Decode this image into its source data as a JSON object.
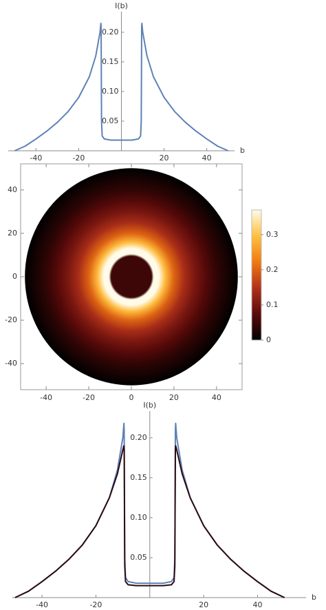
{
  "chart_data": [
    {
      "type": "line",
      "x_label": "b",
      "y_label": "I(b)",
      "x": [
        -50,
        -45,
        -40,
        -35,
        -30,
        -25,
        -20,
        -15,
        -12,
        -10,
        -9.6,
        -9.5,
        -9.3,
        -9,
        -8,
        -5,
        0,
        5,
        8,
        9,
        9.3,
        9.5,
        9.6,
        10,
        12,
        15,
        20,
        25,
        30,
        35,
        40,
        45,
        50
      ],
      "values": [
        0,
        0.008,
        0.02,
        0.033,
        0.048,
        0.066,
        0.09,
        0.125,
        0.16,
        0.2,
        0.215,
        0.21,
        0.05,
        0.025,
        0.02,
        0.018,
        0.018,
        0.018,
        0.02,
        0.025,
        0.05,
        0.21,
        0.215,
        0.2,
        0.16,
        0.125,
        0.09,
        0.066,
        0.048,
        0.033,
        0.02,
        0.008,
        0
      ],
      "color": "#5e81b5",
      "xlim": [
        -53,
        53
      ],
      "ylim": [
        0,
        0.23
      ],
      "xticks": [
        -40,
        -20,
        20,
        40
      ],
      "yticks": [
        0.05,
        {
          "value": 0.1,
          "label": "0.10"
        },
        0.15,
        {
          "value": 0.2,
          "label": "0.20"
        }
      ]
    },
    {
      "type": "density",
      "r": [
        0,
        9,
        9.5,
        10.5,
        13,
        16,
        20,
        25,
        30,
        35,
        40,
        45,
        50
      ],
      "values": [
        0.05,
        0.05,
        0.05,
        0.37,
        0.37,
        0.29,
        0.2,
        0.14,
        0.1,
        0.07,
        0.04,
        0.02,
        0
      ],
      "xlim": [
        -52,
        52
      ],
      "ylim": [
        -52,
        52
      ],
      "xticks": [
        -40,
        -20,
        0,
        20,
        40
      ],
      "yticks": [
        -40,
        -20,
        0,
        20,
        40
      ],
      "colorscale": [
        "#000000",
        "#5a0a0a",
        "#b0301a",
        "#f07a10",
        "#ffc040",
        "#fffbe8"
      ],
      "clim": [
        0,
        0.37
      ],
      "cticks": [
        0,
        0.1,
        0.2,
        0.3
      ]
    },
    {
      "type": "line",
      "x_label": "b",
      "y_label": "I(b)",
      "x": [
        -50,
        -45,
        -40,
        -35,
        -30,
        -25,
        -20,
        -15,
        -12,
        -10,
        -9.6,
        -9.5,
        -9.3,
        -9,
        -8,
        -5,
        0,
        5,
        8,
        9,
        9.3,
        9.5,
        9.6,
        10,
        12,
        15,
        20,
        25,
        30,
        35,
        40,
        45,
        50
      ],
      "series": [
        {
          "color": "#5e81b5",
          "values": [
            0,
            0.008,
            0.02,
            0.033,
            0.048,
            0.066,
            0.09,
            0.125,
            0.16,
            0.2,
            0.218,
            0.21,
            0.05,
            0.025,
            0.02,
            0.018,
            0.018,
            0.018,
            0.02,
            0.025,
            0.05,
            0.21,
            0.218,
            0.2,
            0.16,
            0.125,
            0.09,
            0.066,
            0.048,
            0.033,
            0.02,
            0.008,
            0
          ]
        },
        {
          "color": "#2b0a12",
          "values": [
            0,
            0.008,
            0.02,
            0.033,
            0.048,
            0.066,
            0.09,
            0.125,
            0.155,
            0.185,
            0.19,
            0.185,
            0.04,
            0.02,
            0.016,
            0.015,
            0.015,
            0.015,
            0.016,
            0.02,
            0.04,
            0.185,
            0.19,
            0.185,
            0.155,
            0.125,
            0.09,
            0.066,
            0.048,
            0.033,
            0.02,
            0.008,
            0
          ]
        }
      ],
      "xlim": [
        -51,
        58
      ],
      "ylim": [
        0,
        0.23
      ],
      "xticks": [
        -40,
        -20,
        20,
        40
      ],
      "yticks": [
        0.05,
        {
          "value": 0.1,
          "label": "0.10"
        },
        0.15,
        {
          "value": 0.2,
          "label": "0.20"
        }
      ]
    }
  ]
}
